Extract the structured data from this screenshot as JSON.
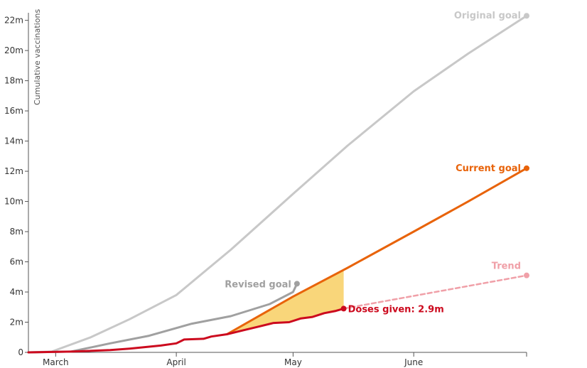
{
  "chart_data": {
    "type": "line",
    "ylabel": "Cumulative vaccinations",
    "xlabel": "",
    "x_range": [
      "2021-02-22",
      "2021-06-30"
    ],
    "ylim": [
      0,
      22.5
    ],
    "y_ticks": [
      {
        "value": 0,
        "label": "0"
      },
      {
        "value": 2,
        "label": "2m"
      },
      {
        "value": 4,
        "label": "4m"
      },
      {
        "value": 6,
        "label": "6m"
      },
      {
        "value": 8,
        "label": "8m"
      },
      {
        "value": 10,
        "label": "10m"
      },
      {
        "value": 12,
        "label": "12m"
      },
      {
        "value": 14,
        "label": "14m"
      },
      {
        "value": 16,
        "label": "16m"
      },
      {
        "value": 18,
        "label": "18m"
      },
      {
        "value": 20,
        "label": "20m"
      },
      {
        "value": 22,
        "label": "22m"
      }
    ],
    "x_ticks": [
      {
        "date": "2021-03-01",
        "label": "March"
      },
      {
        "date": "2021-04-01",
        "label": "April"
      },
      {
        "date": "2021-05-01",
        "label": "May"
      },
      {
        "date": "2021-06-01",
        "label": "June"
      },
      {
        "date": "2021-06-30",
        "label": ""
      }
    ],
    "grid": false,
    "series": [
      {
        "name": "Original goal",
        "color": "#c8c8c8",
        "style": "solid",
        "label_position": "end",
        "points": [
          [
            "2021-02-22",
            0
          ],
          [
            "2021-02-28",
            0.05
          ],
          [
            "2021-03-10",
            1.0
          ],
          [
            "2021-03-20",
            2.2
          ],
          [
            "2021-04-01",
            3.8
          ],
          [
            "2021-04-15",
            6.8
          ],
          [
            "2021-05-01",
            10.5
          ],
          [
            "2021-05-15",
            13.7
          ],
          [
            "2021-06-01",
            17.3
          ],
          [
            "2021-06-15",
            19.8
          ],
          [
            "2021-06-30",
            22.3
          ]
        ]
      },
      {
        "name": "Revised goal",
        "color": "#a0a0a0",
        "style": "solid",
        "label_position": "end",
        "points": [
          [
            "2021-02-22",
            0
          ],
          [
            "2021-03-05",
            0.05
          ],
          [
            "2021-03-15",
            0.6
          ],
          [
            "2021-03-25",
            1.1
          ],
          [
            "2021-04-05",
            1.9
          ],
          [
            "2021-04-15",
            2.4
          ],
          [
            "2021-04-25",
            3.2
          ],
          [
            "2021-05-01",
            4.0
          ],
          [
            "2021-05-02",
            4.55
          ]
        ]
      },
      {
        "name": "Current goal",
        "color": "#e8630a",
        "style": "solid",
        "label_position": "end",
        "points": [
          [
            "2021-04-14",
            1.2
          ],
          [
            "2021-05-01",
            3.7
          ],
          [
            "2021-05-15",
            5.6
          ],
          [
            "2021-06-01",
            8.0
          ],
          [
            "2021-06-15",
            10.0
          ],
          [
            "2021-06-30",
            12.2
          ]
        ]
      },
      {
        "name": "Trend",
        "color": "#f0a0a8",
        "style": "dashed",
        "label_position": "end",
        "points": [
          [
            "2021-05-14",
            2.9
          ],
          [
            "2021-06-30",
            5.1
          ]
        ]
      },
      {
        "name": "Doses given",
        "label_text": "Doses given: 2.9m",
        "color": "#cc0a1e",
        "style": "solid",
        "label_position": "end",
        "points": [
          [
            "2021-02-22",
            0
          ],
          [
            "2021-03-05",
            0.05
          ],
          [
            "2021-03-15",
            0.15
          ],
          [
            "2021-03-20",
            0.25
          ],
          [
            "2021-03-28",
            0.45
          ],
          [
            "2021-04-01",
            0.6
          ],
          [
            "2021-04-03",
            0.85
          ],
          [
            "2021-04-08",
            0.9
          ],
          [
            "2021-04-10",
            1.05
          ],
          [
            "2021-04-14",
            1.2
          ],
          [
            "2021-04-18",
            1.45
          ],
          [
            "2021-04-22",
            1.7
          ],
          [
            "2021-04-26",
            1.95
          ],
          [
            "2021-04-30",
            2.0
          ],
          [
            "2021-05-03",
            2.25
          ],
          [
            "2021-05-06",
            2.35
          ],
          [
            "2021-05-09",
            2.6
          ],
          [
            "2021-05-12",
            2.75
          ],
          [
            "2021-05-14",
            2.9
          ]
        ]
      }
    ],
    "shaded_gap": {
      "color": "#f9d67a",
      "between": [
        "Current goal",
        "Doses given"
      ],
      "from": "2021-04-14",
      "to": "2021-05-14"
    }
  }
}
